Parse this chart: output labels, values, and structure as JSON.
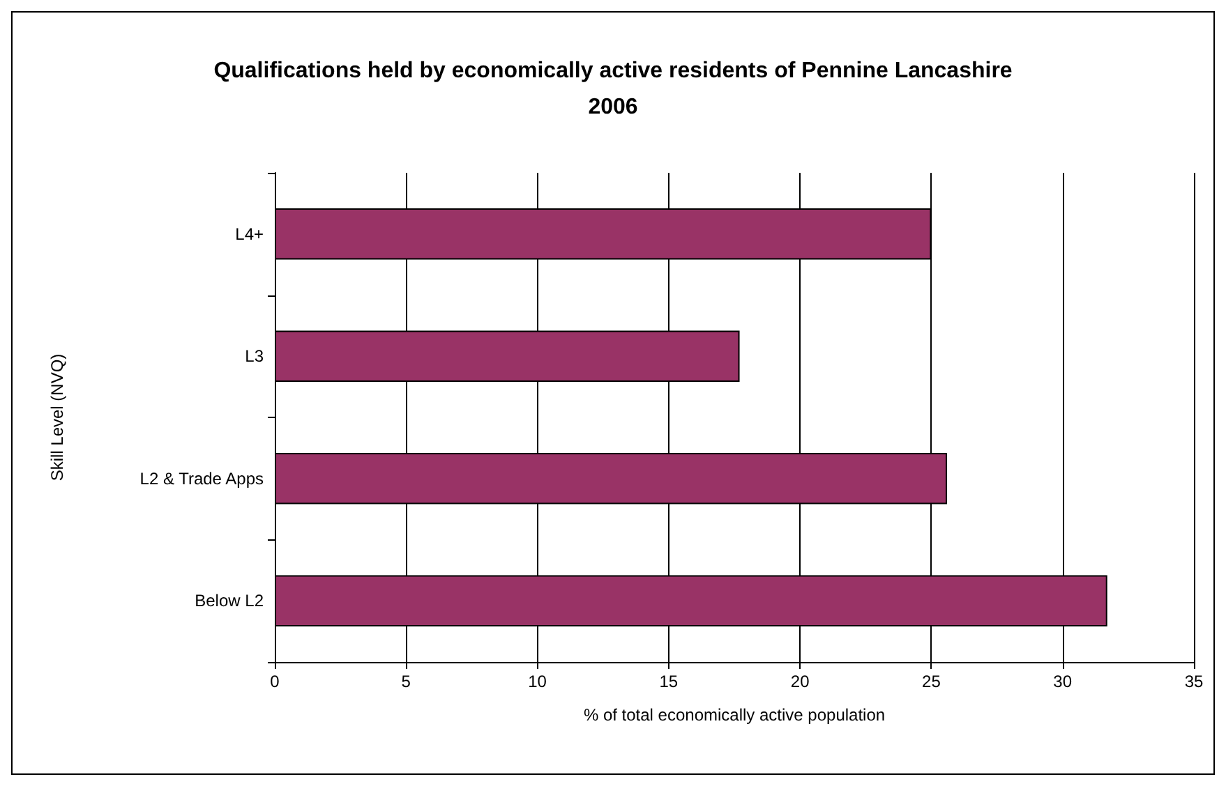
{
  "chart_data": {
    "type": "bar",
    "orientation": "horizontal",
    "title": "Qualifications held by economically active residents of Pennine Lancashire\n2006",
    "xlabel": "% of total economically active population",
    "ylabel": "Skill Level (NVQ)",
    "categories": [
      "L4+",
      "L3",
      "L2 & Trade Apps",
      "Below L2"
    ],
    "values": [
      25.0,
      17.7,
      25.6,
      31.7
    ],
    "color": "#993366",
    "xlim": [
      0,
      35
    ],
    "xticks": [
      0,
      5,
      10,
      15,
      20,
      25,
      30,
      35
    ],
    "grid": "x"
  }
}
